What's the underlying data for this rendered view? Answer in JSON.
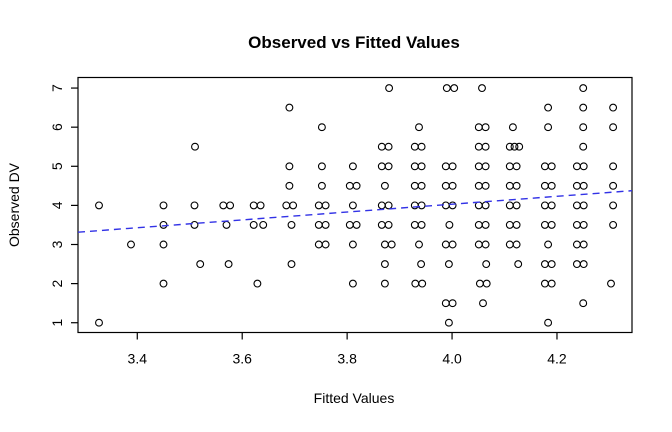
{
  "chart_data": {
    "type": "scatter",
    "title": "Observed vs Fitted Values",
    "xlabel": "Fitted Values",
    "ylabel": "Observed DV",
    "xlim": [
      3.287,
      4.343
    ],
    "ylim": [
      0.75,
      7.27
    ],
    "xticks": [
      3.4,
      3.6,
      3.8,
      4.0,
      4.2
    ],
    "xtick_labels": [
      "3.4",
      "3.6",
      "3.8",
      "4.0",
      "4.2"
    ],
    "yticks": [
      1,
      2,
      3,
      4,
      5,
      6,
      7
    ],
    "ytick_labels": [
      "1",
      "2",
      "3",
      "4",
      "5",
      "6",
      "7"
    ],
    "grid": false,
    "legend": "none",
    "marker": {
      "shape": "open-circle",
      "radius": 3.4,
      "color": "#000000"
    },
    "fit_line": {
      "style": "dashed",
      "color": "#3232e6",
      "x1": 3.287,
      "y1": 3.315,
      "x2": 4.343,
      "y2": 4.375
    },
    "points": [
      [
        3.88,
        7
      ],
      [
        3.99,
        7
      ],
      [
        4.004,
        7
      ],
      [
        4.057,
        7
      ],
      [
        4.25,
        7
      ],
      [
        3.69,
        6.5
      ],
      [
        4.183,
        6.5
      ],
      [
        4.25,
        6.5
      ],
      [
        4.307,
        6.5
      ],
      [
        3.752,
        6
      ],
      [
        3.937,
        6
      ],
      [
        4.051,
        6
      ],
      [
        4.064,
        6
      ],
      [
        4.116,
        6
      ],
      [
        4.183,
        6
      ],
      [
        4.25,
        6
      ],
      [
        4.307,
        6
      ],
      [
        3.51,
        5.5
      ],
      [
        3.866,
        5.5
      ],
      [
        3.879,
        5.5
      ],
      [
        3.929,
        5.5
      ],
      [
        3.942,
        5.5
      ],
      [
        4.051,
        5.5
      ],
      [
        4.064,
        5.5
      ],
      [
        4.11,
        5.5
      ],
      [
        4.119,
        5.5
      ],
      [
        4.128,
        5.5
      ],
      [
        4.25,
        5.5
      ],
      [
        3.69,
        5
      ],
      [
        3.752,
        5
      ],
      [
        3.811,
        5
      ],
      [
        3.866,
        5
      ],
      [
        3.879,
        5
      ],
      [
        3.929,
        5
      ],
      [
        3.942,
        5
      ],
      [
        3.988,
        5
      ],
      [
        4.001,
        5
      ],
      [
        4.051,
        5
      ],
      [
        4.064,
        5
      ],
      [
        4.11,
        5
      ],
      [
        4.123,
        5
      ],
      [
        4.177,
        5
      ],
      [
        4.19,
        5
      ],
      [
        4.238,
        5
      ],
      [
        4.251,
        5
      ],
      [
        4.307,
        5
      ],
      [
        3.69,
        4.5
      ],
      [
        3.752,
        4.5
      ],
      [
        3.805,
        4.5
      ],
      [
        3.818,
        4.5
      ],
      [
        3.872,
        4.5
      ],
      [
        3.929,
        4.5
      ],
      [
        3.942,
        4.5
      ],
      [
        3.988,
        4.5
      ],
      [
        4.001,
        4.5
      ],
      [
        4.051,
        4.5
      ],
      [
        4.064,
        4.5
      ],
      [
        4.11,
        4.5
      ],
      [
        4.123,
        4.5
      ],
      [
        4.177,
        4.5
      ],
      [
        4.19,
        4.5
      ],
      [
        4.238,
        4.5
      ],
      [
        4.251,
        4.5
      ],
      [
        4.307,
        4.5
      ],
      [
        3.327,
        4
      ],
      [
        3.45,
        4
      ],
      [
        3.509,
        4
      ],
      [
        3.564,
        4
      ],
      [
        3.577,
        4
      ],
      [
        3.622,
        4
      ],
      [
        3.635,
        4
      ],
      [
        3.684,
        4
      ],
      [
        3.697,
        4
      ],
      [
        3.746,
        4
      ],
      [
        3.759,
        4
      ],
      [
        3.811,
        4
      ],
      [
        3.866,
        4
      ],
      [
        3.879,
        4
      ],
      [
        3.929,
        4
      ],
      [
        3.942,
        4
      ],
      [
        3.988,
        4
      ],
      [
        4.001,
        4
      ],
      [
        4.051,
        4
      ],
      [
        4.064,
        4
      ],
      [
        4.11,
        4
      ],
      [
        4.123,
        4
      ],
      [
        4.177,
        4
      ],
      [
        4.19,
        4
      ],
      [
        4.238,
        4
      ],
      [
        4.251,
        4
      ],
      [
        4.307,
        4
      ],
      [
        3.45,
        3.5
      ],
      [
        3.509,
        3.5
      ],
      [
        3.57,
        3.5
      ],
      [
        3.622,
        3.5
      ],
      [
        3.64,
        3.5
      ],
      [
        3.694,
        3.5
      ],
      [
        3.746,
        3.5
      ],
      [
        3.759,
        3.5
      ],
      [
        3.805,
        3.5
      ],
      [
        3.818,
        3.5
      ],
      [
        3.866,
        3.5
      ],
      [
        3.879,
        3.5
      ],
      [
        3.929,
        3.5
      ],
      [
        3.942,
        3.5
      ],
      [
        3.995,
        3.5
      ],
      [
        4.051,
        3.5
      ],
      [
        4.064,
        3.5
      ],
      [
        4.11,
        3.5
      ],
      [
        4.123,
        3.5
      ],
      [
        4.177,
        3.5
      ],
      [
        4.19,
        3.5
      ],
      [
        4.238,
        3.5
      ],
      [
        4.251,
        3.5
      ],
      [
        4.307,
        3.5
      ],
      [
        3.388,
        3
      ],
      [
        3.45,
        3
      ],
      [
        3.746,
        3
      ],
      [
        3.759,
        3
      ],
      [
        3.811,
        3
      ],
      [
        3.872,
        3
      ],
      [
        3.885,
        3
      ],
      [
        3.937,
        3
      ],
      [
        3.988,
        3
      ],
      [
        4.001,
        3
      ],
      [
        4.051,
        3
      ],
      [
        4.064,
        3
      ],
      [
        4.11,
        3
      ],
      [
        4.123,
        3
      ],
      [
        4.183,
        3
      ],
      [
        4.238,
        3
      ],
      [
        4.251,
        3
      ],
      [
        3.52,
        2.5
      ],
      [
        3.574,
        2.5
      ],
      [
        3.694,
        2.5
      ],
      [
        3.872,
        2.5
      ],
      [
        3.941,
        2.5
      ],
      [
        3.994,
        2.5
      ],
      [
        4.065,
        2.5
      ],
      [
        4.126,
        2.5
      ],
      [
        4.177,
        2.5
      ],
      [
        4.19,
        2.5
      ],
      [
        4.238,
        2.5
      ],
      [
        4.251,
        2.5
      ],
      [
        3.45,
        2
      ],
      [
        3.629,
        2
      ],
      [
        3.811,
        2
      ],
      [
        3.872,
        2
      ],
      [
        3.93,
        2
      ],
      [
        3.943,
        2
      ],
      [
        4.053,
        2
      ],
      [
        4.066,
        2
      ],
      [
        4.177,
        2
      ],
      [
        4.19,
        2
      ],
      [
        4.303,
        2
      ],
      [
        3.988,
        1.5
      ],
      [
        4.001,
        1.5
      ],
      [
        4.059,
        1.5
      ],
      [
        4.25,
        1.5
      ],
      [
        3.327,
        1
      ],
      [
        3.994,
        1
      ],
      [
        4.183,
        1
      ]
    ]
  }
}
